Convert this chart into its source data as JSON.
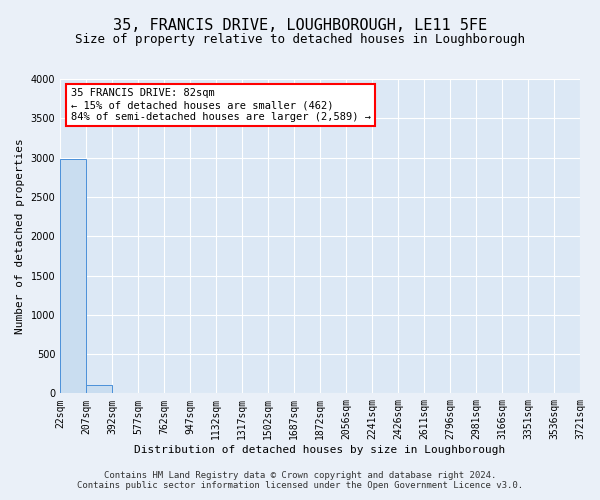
{
  "title": "35, FRANCIS DRIVE, LOUGHBOROUGH, LE11 5FE",
  "subtitle": "Size of property relative to detached houses in Loughborough",
  "xlabel": "Distribution of detached houses by size in Loughborough",
  "ylabel": "Number of detached properties",
  "footnote1": "Contains HM Land Registry data © Crown copyright and database right 2024.",
  "footnote2": "Contains public sector information licensed under the Open Government Licence v3.0.",
  "bar_edges": [
    22,
    207,
    392,
    577,
    762,
    947,
    1132,
    1317,
    1502,
    1687,
    1872,
    2056,
    2241,
    2426,
    2611,
    2796,
    2981,
    3166,
    3351,
    3536,
    3721
  ],
  "bar_heights": [
    2980,
    105,
    5,
    2,
    1,
    1,
    0,
    0,
    0,
    0,
    0,
    0,
    0,
    0,
    0,
    0,
    0,
    0,
    0,
    0
  ],
  "bar_color": "#c9ddf0",
  "bar_edge_color": "#4a90d9",
  "annotation_line1": "35 FRANCIS DRIVE: 82sqm",
  "annotation_line2": "← 15% of detached houses are smaller (462)",
  "annotation_line3": "84% of semi-detached houses are larger (2,589) →",
  "ylim": [
    0,
    4000
  ],
  "yticks": [
    0,
    500,
    1000,
    1500,
    2000,
    2500,
    3000,
    3500,
    4000
  ],
  "bg_color": "#eaf0f8",
  "plot_bg_color": "#dce8f5",
  "title_fontsize": 11,
  "subtitle_fontsize": 9,
  "axis_label_fontsize": 8,
  "tick_fontsize": 7,
  "annotation_fontsize": 7.5,
  "footnote_fontsize": 6.5
}
